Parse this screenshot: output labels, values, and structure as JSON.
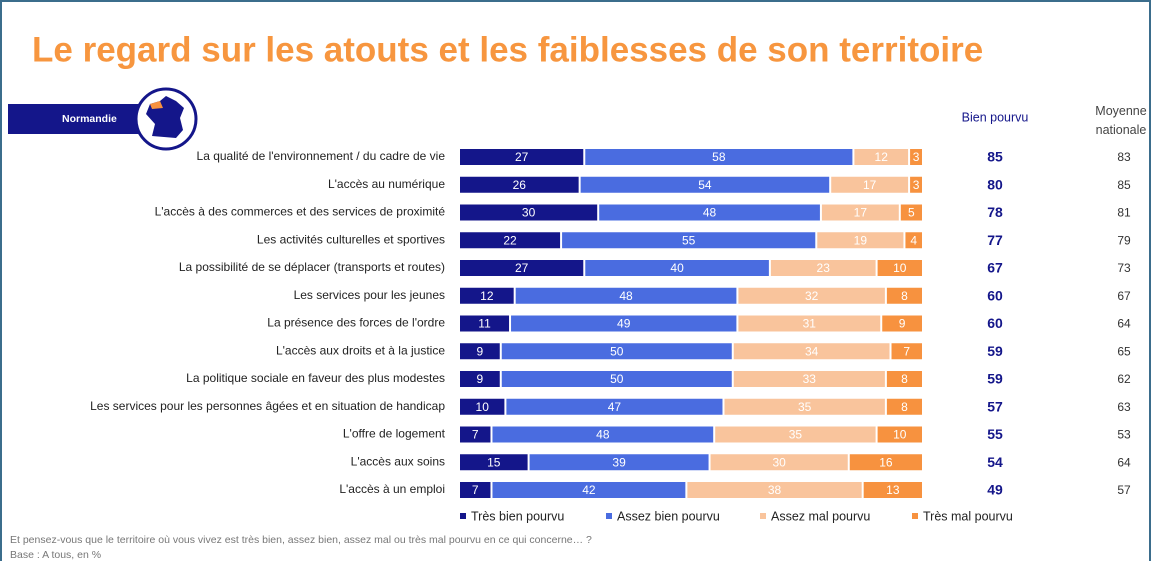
{
  "chart_data": {
    "type": "stacked_bar_horizontal",
    "title": "Le regard sur les atouts et les faiblesses de son territoire",
    "badge": "Normandie",
    "categories": [
      "La qualité de l'environnement / du cadre de vie",
      "L'accès au numérique",
      "L'accès à des commerces et des services de proximité",
      "Les activités culturelles et sportives",
      "La possibilité de se déplacer (transports et routes)",
      "Les services pour les jeunes",
      "La présence des forces de l'ordre",
      "L'accès aux droits et à la justice",
      "La politique sociale en faveur des plus modestes",
      "Les services pour les personnes âgées et en situation de handicap",
      "L'offre de logement",
      "L'accès aux soins",
      "L'accès à un emploi"
    ],
    "series": [
      {
        "name": "Très bien pourvu",
        "color": "#14168a",
        "values": [
          27,
          26,
          30,
          22,
          27,
          12,
          11,
          9,
          9,
          10,
          7,
          15,
          7
        ]
      },
      {
        "name": "Assez bien pourvu",
        "color": "#4a6ce0",
        "values": [
          58,
          54,
          48,
          55,
          40,
          48,
          49,
          50,
          50,
          47,
          48,
          39,
          42
        ]
      },
      {
        "name": "Assez mal pourvu",
        "color": "#f9c49c",
        "values": [
          12,
          17,
          17,
          19,
          23,
          32,
          31,
          34,
          33,
          35,
          35,
          30,
          38
        ]
      },
      {
        "name": "Très mal pourvu",
        "color": "#f7923f",
        "values": [
          3,
          3,
          5,
          4,
          10,
          8,
          9,
          7,
          8,
          8,
          10,
          16,
          13
        ]
      }
    ],
    "xlim": [
      0,
      100
    ],
    "columns": [
      {
        "header": "Bien pourvu",
        "values": [
          85,
          80,
          78,
          77,
          67,
          60,
          60,
          59,
          59,
          57,
          55,
          54,
          49
        ]
      },
      {
        "header": "Moyenne nationale",
        "values": [
          83,
          85,
          81,
          79,
          73,
          67,
          64,
          65,
          62,
          63,
          53,
          64,
          57
        ]
      }
    ],
    "footnotes": [
      "Et pensez-vous que le territoire où vous vivez est très bien, assez bien, assez mal ou très mal pourvu en ce qui concerne… ?",
      "Base : A tous, en %"
    ]
  }
}
